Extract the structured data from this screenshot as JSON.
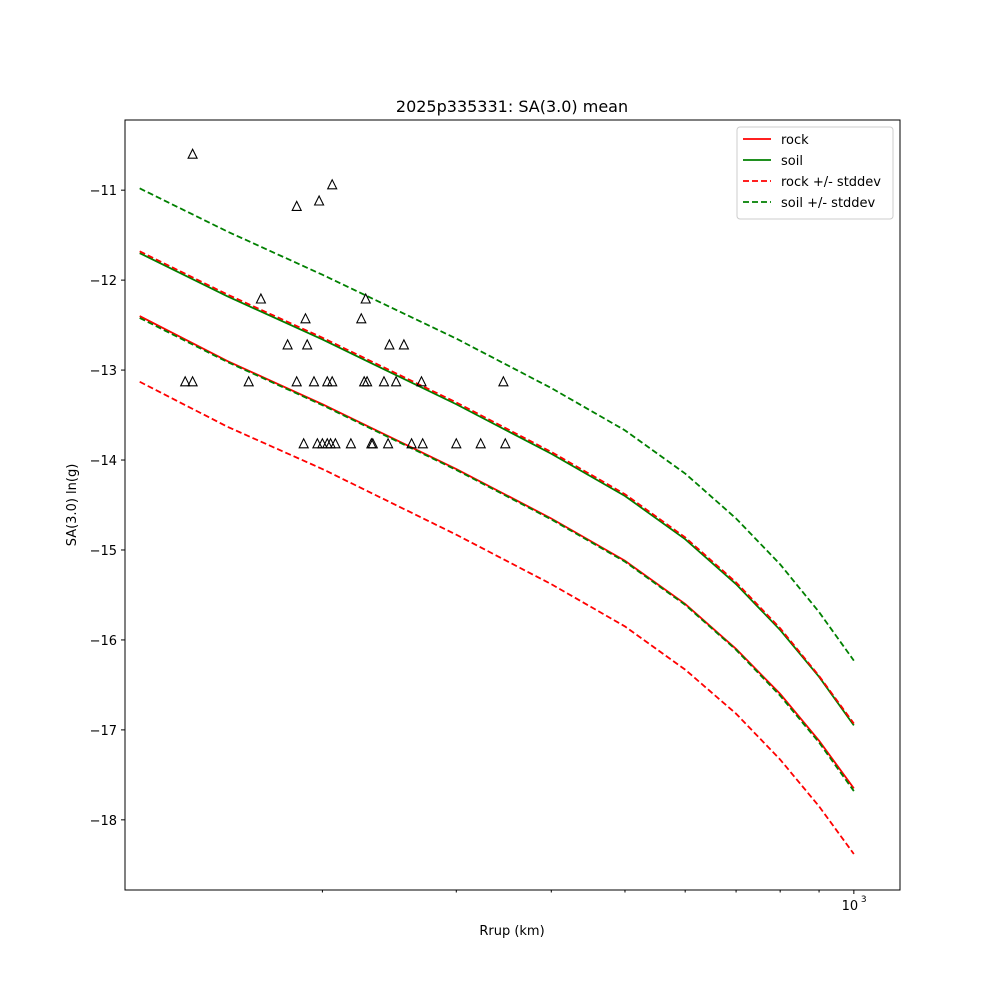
{
  "chart_data": {
    "type": "line",
    "title": "2025p335331: SA(3.0) mean",
    "xlabel": "Rrup (km)",
    "ylabel": "SA(3.0) ln(g)",
    "xscale": "log",
    "xlim": [
      110,
      1150
    ],
    "ylim": [
      -18.78,
      -10.22
    ],
    "x_ticks": [
      {
        "value": 1000,
        "base": "10",
        "exp": "3"
      }
    ],
    "x_minor_ticks": [
      200,
      300,
      400,
      500,
      600,
      700,
      800,
      900
    ],
    "y_ticks": [
      -18,
      -17,
      -16,
      -15,
      -14,
      -13,
      -12,
      -11
    ],
    "grid": false,
    "legend_position": "top-right",
    "series": [
      {
        "name": "rock",
        "color": "#ff0000",
        "dash": "solid",
        "x": [
          115,
          150,
          200,
          300,
          400,
          500,
          600,
          700,
          800,
          900,
          1000
        ],
        "y": [
          -12.4,
          -12.9,
          -13.38,
          -14.1,
          -14.65,
          -15.12,
          -15.6,
          -16.1,
          -16.6,
          -17.12,
          -17.65
        ]
      },
      {
        "name": "soil",
        "color": "#008000",
        "dash": "solid",
        "x": [
          115,
          150,
          200,
          300,
          400,
          500,
          600,
          700,
          800,
          900,
          1000
        ],
        "y": [
          -11.7,
          -12.18,
          -12.66,
          -13.38,
          -13.93,
          -14.4,
          -14.88,
          -15.38,
          -15.89,
          -16.41,
          -16.95
        ]
      },
      {
        "name": "rock +/- stddev",
        "color": "#ff0000",
        "dash": "dashed",
        "x": [
          115,
          150,
          200,
          300,
          400,
          500,
          600,
          700,
          800,
          900,
          1000
        ],
        "y": [
          -11.68,
          -12.16,
          -12.64,
          -13.36,
          -13.91,
          -14.38,
          -14.86,
          -15.36,
          -15.87,
          -16.4,
          -16.93
        ]
      },
      {
        "name": "",
        "color": "#ff0000",
        "dash": "dashed",
        "legend": false,
        "x": [
          115,
          150,
          200,
          300,
          400,
          500,
          600,
          700,
          800,
          900,
          1000
        ],
        "y": [
          -13.13,
          -13.63,
          -14.1,
          -14.83,
          -15.38,
          -15.85,
          -16.33,
          -16.82,
          -17.33,
          -17.85,
          -18.38
        ]
      },
      {
        "name": "soil +/- stddev",
        "color": "#008000",
        "dash": "dashed",
        "x": [
          115,
          150,
          200,
          300,
          400,
          500,
          600,
          700,
          800,
          900,
          1000
        ],
        "y": [
          -10.98,
          -11.46,
          -11.94,
          -12.65,
          -13.2,
          -13.67,
          -14.15,
          -14.65,
          -15.16,
          -15.69,
          -16.23
        ]
      },
      {
        "name": "",
        "color": "#008000",
        "dash": "dashed",
        "legend": false,
        "x": [
          115,
          150,
          200,
          300,
          400,
          500,
          600,
          700,
          800,
          900,
          1000
        ],
        "y": [
          -12.42,
          -12.91,
          -13.39,
          -14.11,
          -14.66,
          -15.13,
          -15.61,
          -16.11,
          -16.62,
          -17.14,
          -17.68
        ]
      }
    ],
    "observations": {
      "marker": "triangle",
      "color": "#000000",
      "points": [
        {
          "x": 135,
          "y": -10.6
        },
        {
          "x": 185,
          "y": -11.18
        },
        {
          "x": 198,
          "y": -11.12
        },
        {
          "x": 206,
          "y": -10.94
        },
        {
          "x": 166,
          "y": -12.21
        },
        {
          "x": 190,
          "y": -12.43
        },
        {
          "x": 225,
          "y": -12.43
        },
        {
          "x": 228,
          "y": -12.21
        },
        {
          "x": 180,
          "y": -12.72
        },
        {
          "x": 191,
          "y": -12.72
        },
        {
          "x": 245,
          "y": -12.72
        },
        {
          "x": 256,
          "y": -12.72
        },
        {
          "x": 132,
          "y": -13.13
        },
        {
          "x": 135,
          "y": -13.13
        },
        {
          "x": 160,
          "y": -13.13
        },
        {
          "x": 185,
          "y": -13.13
        },
        {
          "x": 195,
          "y": -13.13
        },
        {
          "x": 203,
          "y": -13.13
        },
        {
          "x": 206,
          "y": -13.13
        },
        {
          "x": 227,
          "y": -13.13
        },
        {
          "x": 229,
          "y": -13.13
        },
        {
          "x": 241,
          "y": -13.13
        },
        {
          "x": 250,
          "y": -13.13
        },
        {
          "x": 270,
          "y": -13.13
        },
        {
          "x": 346,
          "y": -13.13
        },
        {
          "x": 189,
          "y": -13.82
        },
        {
          "x": 197,
          "y": -13.82
        },
        {
          "x": 200,
          "y": -13.82
        },
        {
          "x": 203,
          "y": -13.82
        },
        {
          "x": 205,
          "y": -13.82
        },
        {
          "x": 208,
          "y": -13.82
        },
        {
          "x": 218,
          "y": -13.82
        },
        {
          "x": 232,
          "y": -13.82
        },
        {
          "x": 233,
          "y": -13.82
        },
        {
          "x": 244,
          "y": -13.82
        },
        {
          "x": 262,
          "y": -13.82
        },
        {
          "x": 271,
          "y": -13.82
        },
        {
          "x": 300,
          "y": -13.82
        },
        {
          "x": 323,
          "y": -13.82
        },
        {
          "x": 348,
          "y": -13.82
        }
      ]
    }
  }
}
